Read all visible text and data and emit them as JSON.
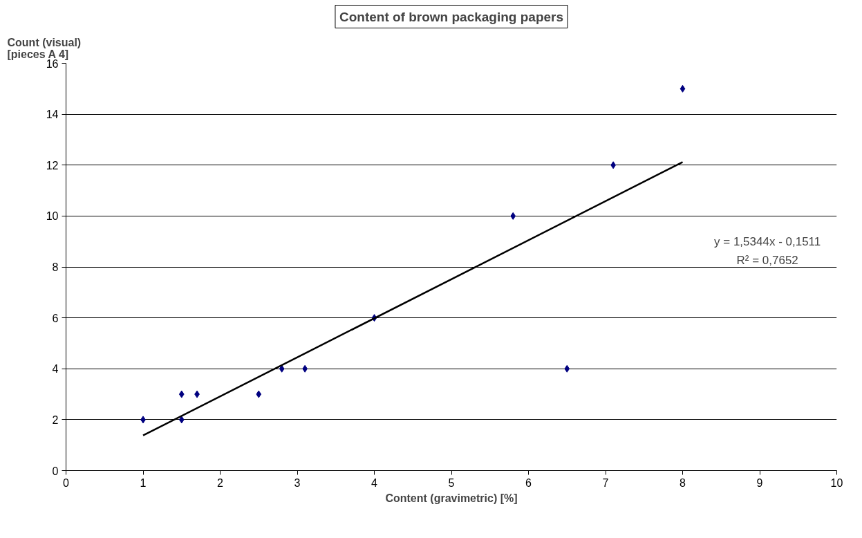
{
  "chart_data": {
    "type": "scatter",
    "title": "Content of brown packaging papers",
    "xlabel": "Content (gravimetric) [%]",
    "ylabel": "Count (visual)\n[pieces A 4]",
    "series": [
      {
        "color": "#000080",
        "marker": "diamond",
        "x": [
          1,
          1.5,
          1.5,
          1.7,
          2.5,
          2.8,
          3.1,
          4,
          5.8,
          6.5,
          7.1,
          8
        ],
        "values": [
          2,
          3,
          2,
          3,
          3,
          4,
          4,
          6,
          10,
          4,
          12,
          15
        ]
      },
      {
        "type": "line",
        "color": "#000000",
        "x": [
          1,
          8
        ],
        "values": [
          1.38,
          12.12
        ]
      }
    ],
    "annotations": [
      "y = 1,5344x - 0,1511",
      "R² = 0,7652"
    ],
    "xlim": [
      0,
      10
    ],
    "xticks": [
      0,
      1,
      2,
      3,
      4,
      5,
      6,
      7,
      8,
      9,
      10
    ],
    "ylim": [
      0,
      16
    ],
    "yticks": [
      0,
      2,
      4,
      6,
      8,
      10,
      12,
      14,
      16
    ],
    "grid": "y"
  }
}
